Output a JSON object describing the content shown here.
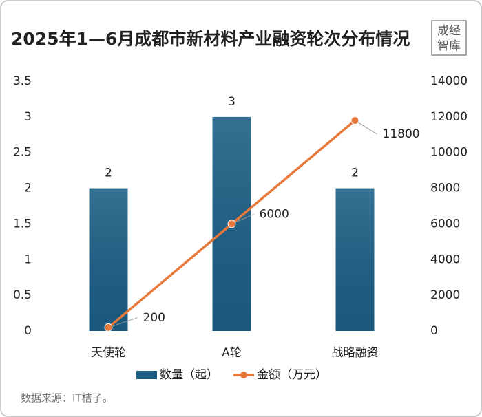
{
  "chart_data": {
    "type": "bar",
    "title": "2025年1—6月成都市新材料产业融资轮次分布情况",
    "logo": [
      "成经",
      "智库"
    ],
    "source": "数据来源：IT桔子。",
    "categories": [
      "天使轮",
      "A轮",
      "战略融资"
    ],
    "series": [
      {
        "name": "数量（起）",
        "type": "bar",
        "color": "#1b5d83",
        "values": [
          2,
          3,
          2
        ]
      },
      {
        "name": "金额（万元）",
        "type": "line",
        "axis": "y2",
        "color": "#e8773a",
        "values": [
          200,
          6000,
          11800
        ]
      }
    ],
    "ylim": [
      0,
      3.5
    ],
    "yticks": [
      0,
      0.5,
      1,
      1.5,
      2,
      2.5,
      3,
      3.5
    ],
    "y2lim": [
      0,
      14000
    ],
    "y2ticks": [
      0,
      2000,
      4000,
      6000,
      8000,
      10000,
      12000,
      14000
    ],
    "legend": "bottom"
  }
}
